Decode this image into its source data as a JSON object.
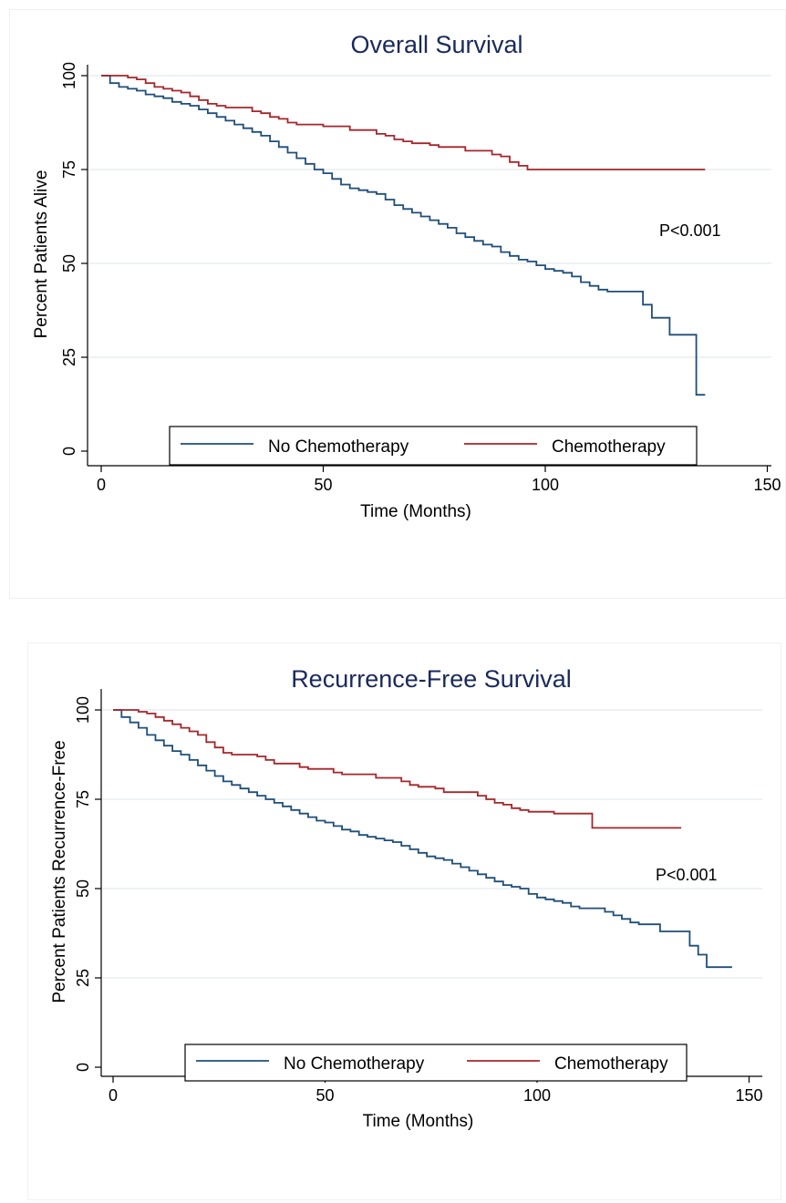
{
  "chart_data": [
    {
      "type": "line",
      "step": true,
      "title": "Overall Survival",
      "xlabel": "Time (Months)",
      "ylabel": "Percent Patients Alive",
      "xlim": [
        0,
        150
      ],
      "ylim": [
        0,
        100
      ],
      "x_ticks": [
        "0",
        "50",
        "100",
        "150"
      ],
      "y_ticks": [
        "0",
        "25",
        "50",
        "75",
        "100"
      ],
      "grid": true,
      "annotation": "P<0.001",
      "legend_position": "bottom",
      "series": [
        {
          "name": "No Chemotherapy",
          "color": "#1f4e79",
          "points": [
            [
              0,
              100
            ],
            [
              2,
              98
            ],
            [
              4,
              97
            ],
            [
              6,
              96.5
            ],
            [
              8,
              96
            ],
            [
              10,
              95
            ],
            [
              12,
              94.5
            ],
            [
              14,
              94
            ],
            [
              16,
              93
            ],
            [
              18,
              92.5
            ],
            [
              20,
              92
            ],
            [
              22,
              91
            ],
            [
              24,
              90
            ],
            [
              26,
              89
            ],
            [
              28,
              88
            ],
            [
              30,
              87
            ],
            [
              32,
              86
            ],
            [
              34,
              85
            ],
            [
              36,
              84
            ],
            [
              38,
              82.5
            ],
            [
              40,
              81
            ],
            [
              42,
              79.5
            ],
            [
              44,
              78
            ],
            [
              46,
              76.5
            ],
            [
              48,
              75
            ],
            [
              50,
              74
            ],
            [
              52,
              72.5
            ],
            [
              54,
              71
            ],
            [
              56,
              70
            ],
            [
              58,
              69.5
            ],
            [
              60,
              69
            ],
            [
              62,
              68.5
            ],
            [
              64,
              67
            ],
            [
              66,
              65.5
            ],
            [
              68,
              64.5
            ],
            [
              70,
              63.5
            ],
            [
              72,
              62.5
            ],
            [
              74,
              61.5
            ],
            [
              76,
              60.5
            ],
            [
              78,
              59.5
            ],
            [
              80,
              58
            ],
            [
              82,
              57
            ],
            [
              84,
              56
            ],
            [
              86,
              55
            ],
            [
              88,
              54.5
            ],
            [
              90,
              53
            ],
            [
              92,
              52
            ],
            [
              94,
              51
            ],
            [
              96,
              50.5
            ],
            [
              98,
              49.5
            ],
            [
              100,
              48.5
            ],
            [
              102,
              48
            ],
            [
              104,
              47.5
            ],
            [
              106,
              46.5
            ],
            [
              108,
              45
            ],
            [
              110,
              44
            ],
            [
              112,
              43
            ],
            [
              114,
              42.5
            ],
            [
              120,
              42.5
            ],
            [
              122,
              39
            ],
            [
              124,
              35.5
            ],
            [
              126,
              35.5
            ],
            [
              128,
              31
            ],
            [
              133,
              31
            ],
            [
              134,
              15
            ],
            [
              136,
              15
            ]
          ]
        },
        {
          "name": "Chemotherapy",
          "color": "#a5262b",
          "points": [
            [
              0,
              100
            ],
            [
              3,
              100
            ],
            [
              6,
              99.5
            ],
            [
              8,
              99
            ],
            [
              10,
              98
            ],
            [
              12,
              97
            ],
            [
              14,
              96.5
            ],
            [
              16,
              96
            ],
            [
              18,
              95.5
            ],
            [
              20,
              94.5
            ],
            [
              22,
              93.5
            ],
            [
              24,
              92.5
            ],
            [
              26,
              92
            ],
            [
              28,
              91.5
            ],
            [
              32,
              91.5
            ],
            [
              34,
              90.5
            ],
            [
              36,
              90
            ],
            [
              38,
              89
            ],
            [
              40,
              88.5
            ],
            [
              42,
              87.5
            ],
            [
              44,
              87
            ],
            [
              48,
              87
            ],
            [
              50,
              86.5
            ],
            [
              54,
              86.5
            ],
            [
              56,
              85.5
            ],
            [
              60,
              85.5
            ],
            [
              62,
              84.5
            ],
            [
              64,
              84
            ],
            [
              66,
              83
            ],
            [
              68,
              82.5
            ],
            [
              70,
              82
            ],
            [
              74,
              81.5
            ],
            [
              76,
              81
            ],
            [
              80,
              81
            ],
            [
              82,
              80
            ],
            [
              86,
              80
            ],
            [
              88,
              79
            ],
            [
              90,
              78.5
            ],
            [
              92,
              77
            ],
            [
              94,
              76
            ],
            [
              96,
              75
            ],
            [
              136,
              75
            ]
          ]
        }
      ]
    },
    {
      "type": "line",
      "step": true,
      "title": "Recurrence-Free Survival",
      "xlabel": "Time (Months)",
      "ylabel": "Percent Patients Recurrence-Free",
      "xlim": [
        0,
        150
      ],
      "ylim": [
        0,
        100
      ],
      "x_ticks": [
        "0",
        "50",
        "100",
        "150"
      ],
      "y_ticks": [
        "0",
        "25",
        "50",
        "75",
        "100"
      ],
      "grid": true,
      "annotation": "P<0.001",
      "legend_position": "bottom",
      "series": [
        {
          "name": "No Chemotherapy",
          "color": "#1f4e79",
          "points": [
            [
              0,
              100
            ],
            [
              2,
              98
            ],
            [
              4,
              96.5
            ],
            [
              6,
              95
            ],
            [
              8,
              93
            ],
            [
              10,
              91.5
            ],
            [
              12,
              90
            ],
            [
              14,
              88.5
            ],
            [
              16,
              87.5
            ],
            [
              18,
              86
            ],
            [
              20,
              84.5
            ],
            [
              22,
              83
            ],
            [
              24,
              81.5
            ],
            [
              26,
              80
            ],
            [
              28,
              79
            ],
            [
              30,
              78
            ],
            [
              32,
              77
            ],
            [
              34,
              76
            ],
            [
              36,
              75
            ],
            [
              38,
              74
            ],
            [
              40,
              73
            ],
            [
              42,
              72
            ],
            [
              44,
              71
            ],
            [
              46,
              70
            ],
            [
              48,
              69
            ],
            [
              50,
              68.5
            ],
            [
              52,
              67.5
            ],
            [
              54,
              66.5
            ],
            [
              56,
              66
            ],
            [
              58,
              65
            ],
            [
              60,
              64.5
            ],
            [
              62,
              64
            ],
            [
              64,
              63.5
            ],
            [
              66,
              63
            ],
            [
              68,
              62
            ],
            [
              70,
              61
            ],
            [
              72,
              60
            ],
            [
              74,
              59
            ],
            [
              76,
              58.5
            ],
            [
              78,
              58
            ],
            [
              80,
              57
            ],
            [
              82,
              56
            ],
            [
              84,
              55
            ],
            [
              86,
              54
            ],
            [
              88,
              53
            ],
            [
              90,
              52
            ],
            [
              92,
              51
            ],
            [
              94,
              50.5
            ],
            [
              96,
              50
            ],
            [
              98,
              48.5
            ],
            [
              100,
              47.5
            ],
            [
              102,
              47
            ],
            [
              104,
              46.5
            ],
            [
              106,
              46
            ],
            [
              108,
              45
            ],
            [
              110,
              44.5
            ],
            [
              114,
              44.5
            ],
            [
              116,
              43.5
            ],
            [
              118,
              42.5
            ],
            [
              120,
              41.5
            ],
            [
              122,
              40.5
            ],
            [
              124,
              40
            ],
            [
              128,
              40
            ],
            [
              129,
              38
            ],
            [
              135,
              38
            ],
            [
              136,
              34
            ],
            [
              138,
              31.5
            ],
            [
              140,
              28
            ],
            [
              145,
              28
            ],
            [
              146,
              28
            ]
          ]
        },
        {
          "name": "Chemotherapy",
          "color": "#a5262b",
          "points": [
            [
              0,
              100
            ],
            [
              4,
              100
            ],
            [
              6,
              99.5
            ],
            [
              8,
              99
            ],
            [
              10,
              98
            ],
            [
              12,
              97
            ],
            [
              14,
              96
            ],
            [
              16,
              95
            ],
            [
              18,
              94
            ],
            [
              20,
              93
            ],
            [
              22,
              91
            ],
            [
              24,
              89.5
            ],
            [
              26,
              88
            ],
            [
              28,
              87.5
            ],
            [
              32,
              87.5
            ],
            [
              34,
              87
            ],
            [
              36,
              86
            ],
            [
              38,
              85
            ],
            [
              42,
              85
            ],
            [
              44,
              84
            ],
            [
              46,
              83.5
            ],
            [
              50,
              83.5
            ],
            [
              52,
              82.5
            ],
            [
              54,
              82
            ],
            [
              60,
              82
            ],
            [
              62,
              81
            ],
            [
              66,
              81
            ],
            [
              68,
              80
            ],
            [
              70,
              79
            ],
            [
              72,
              78.5
            ],
            [
              76,
              78
            ],
            [
              78,
              77
            ],
            [
              84,
              77
            ],
            [
              86,
              76
            ],
            [
              88,
              75
            ],
            [
              90,
              74
            ],
            [
              92,
              73.5
            ],
            [
              94,
              72.5
            ],
            [
              96,
              72
            ],
            [
              98,
              71.5
            ],
            [
              102,
              71.5
            ],
            [
              104,
              71
            ],
            [
              112,
              71
            ],
            [
              113,
              67
            ],
            [
              134,
              67
            ]
          ]
        }
      ]
    }
  ]
}
